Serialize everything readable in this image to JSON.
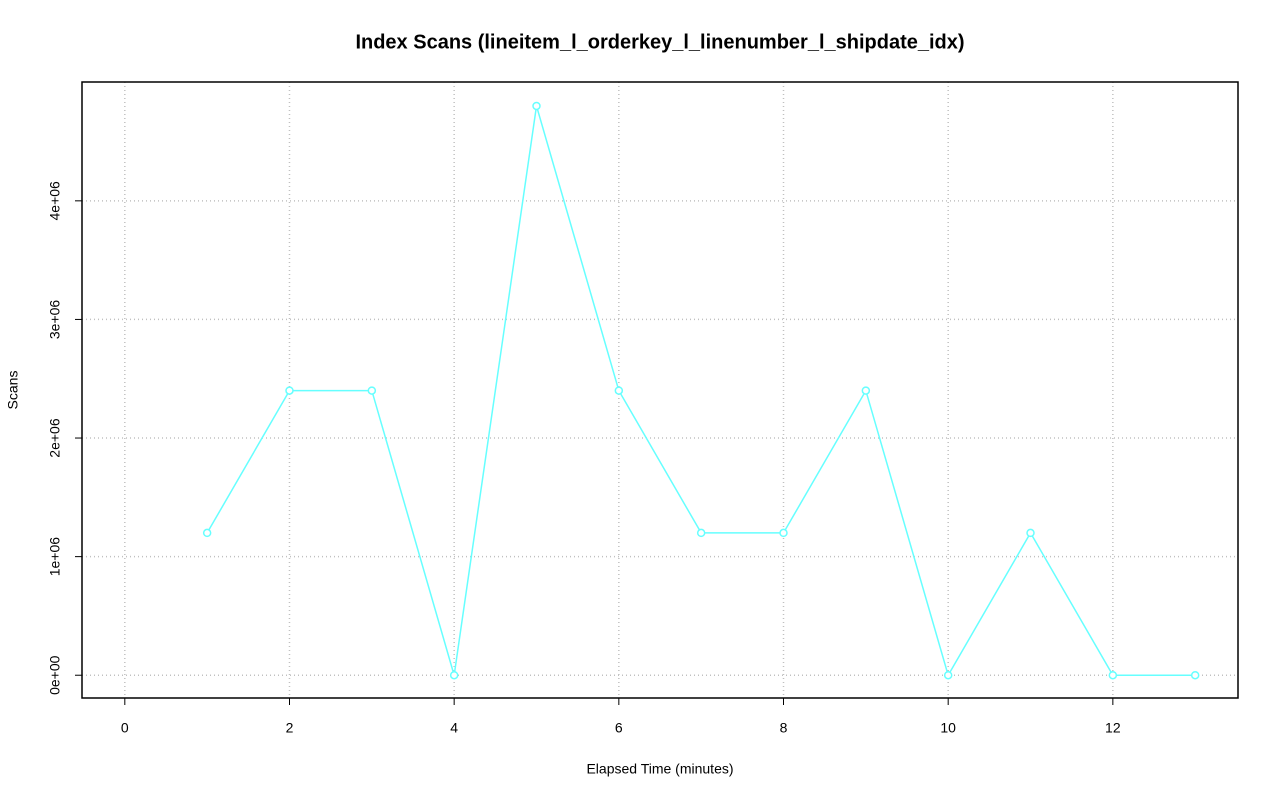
{
  "chart_data": {
    "type": "line",
    "title": "Index Scans (lineitem_l_orderkey_l_linenumber_l_shipdate_idx)",
    "x_label": "Elapsed Time (minutes)",
    "y_label": "Scans",
    "x": [
      1,
      2,
      3,
      4,
      5,
      6,
      7,
      8,
      9,
      10,
      11,
      12,
      13
    ],
    "series": [
      {
        "color": "#66ffff",
        "values": [
          1200000,
          2400000,
          2400000,
          0,
          4800000,
          2400000,
          1200000,
          1200000,
          2400000,
          0,
          1200000,
          0,
          0
        ]
      }
    ],
    "xlim": [
      -0.52,
      13.52
    ],
    "ylim": [
      -192000,
      5002000
    ],
    "xticks": [
      0,
      2,
      4,
      6,
      8,
      10,
      12
    ],
    "yticks": [
      {
        "value": 0,
        "label": "0e+00"
      },
      {
        "value": 1000000,
        "label": "1e+06"
      },
      {
        "value": 2000000,
        "label": "2e+06"
      },
      {
        "value": 3000000,
        "label": "3e+06"
      },
      {
        "value": 4000000,
        "label": "4e+06"
      }
    ],
    "grid": true
  }
}
